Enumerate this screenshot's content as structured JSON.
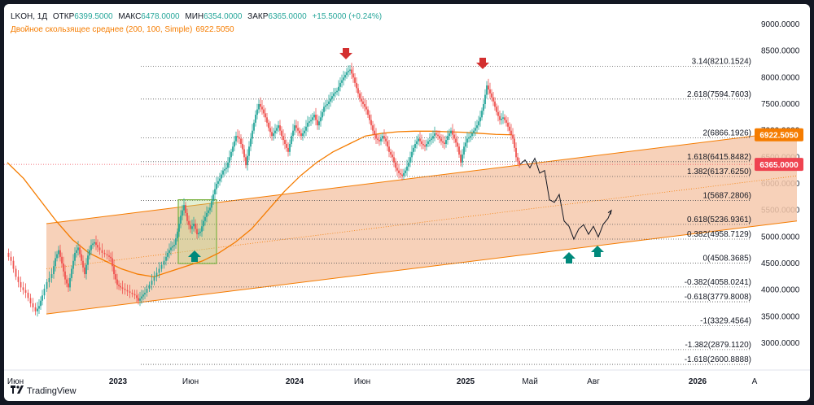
{
  "legend": {
    "symbol": "LKOH, 1Д",
    "open_label": "ОТКР",
    "open": "6399.5000",
    "high_label": "МАКС",
    "high": "6478.0000",
    "low_label": "МИН",
    "low": "6354.0000",
    "close_label": "ЗАКР",
    "close": "6365.0000",
    "change": "+15.5000 (+0.24%)",
    "sma_label": "Двойное скользящее среднее (200, 100, Simple)",
    "sma_value": "6922.5050"
  },
  "brand": {
    "logo_icon": "tradingview-logo-icon",
    "name": "TradingView"
  },
  "colors": {
    "up": "#26a69a",
    "down": "#ef5350",
    "sma": "#f57c00",
    "channel_fill": "#f6c9ad",
    "channel_line": "#f57c00",
    "marker_down": "#d32f2f",
    "marker_up": "#00897b",
    "box": "#7cb342",
    "price_tag": "#ef4350",
    "sma_tag": "#f57c00"
  },
  "chart_data": {
    "type": "candlestick",
    "ylim": [
      2600,
      9300
    ],
    "y_ticks": [
      "9000.0000",
      "8500.0000",
      "8000.0000",
      "7500.0000",
      "7000.0000",
      "6500.0000",
      "6000.0000",
      "5500.0000",
      "5000.0000",
      "4500.0000",
      "4000.0000",
      "3500.0000",
      "3000.0000"
    ],
    "x_ticks": [
      "Июн",
      "2023",
      "Июн",
      "2024",
      "Июн",
      "2025",
      "Май",
      "Авг",
      "2026",
      "А"
    ],
    "last_price": "6365.0000",
    "sma_tag": "6922.5050",
    "fib_levels": [
      {
        "label": "3.14(8210.1524)",
        "value": 8210.1524
      },
      {
        "label": "2.618(7594.7603)",
        "value": 7594.7603
      },
      {
        "label": "2(6866.1926)",
        "value": 6866.1926
      },
      {
        "label": "1.618(6415.8482)",
        "value": 6415.8482
      },
      {
        "label": "1.382(6137.6250)",
        "value": 6137.625
      },
      {
        "label": "1(5687.2806)",
        "value": 5687.2806
      },
      {
        "label": "0.618(5236.9361)",
        "value": 5236.9361
      },
      {
        "label": "0.382(4958.7129)",
        "value": 4958.7129
      },
      {
        "label": "0(4508.3685)",
        "value": 4508.3685
      },
      {
        "label": "-0.382(4058.0241)",
        "value": 4058.0241
      },
      {
        "label": "-0.618(3779.8008)",
        "value": 3779.8008
      },
      {
        "label": "-1(3329.4564)",
        "value": 3329.4564
      },
      {
        "label": "-1.382(2879.1120)",
        "value": 2879.112
      },
      {
        "label": "-1.618(2600.8888)",
        "value": 2600.8888
      }
    ],
    "price_path": [
      [
        0,
        4700
      ],
      [
        6,
        4550
      ],
      [
        12,
        4250
      ],
      [
        18,
        4050
      ],
      [
        24,
        3950
      ],
      [
        30,
        3750
      ],
      [
        36,
        3600
      ],
      [
        40,
        3700
      ],
      [
        44,
        3900
      ],
      [
        50,
        4150
      ],
      [
        56,
        4300
      ],
      [
        60,
        4600
      ],
      [
        64,
        4750
      ],
      [
        68,
        4500
      ],
      [
        72,
        4200
      ],
      [
        76,
        4050
      ],
      [
        80,
        4400
      ],
      [
        84,
        4700
      ],
      [
        88,
        4800
      ],
      [
        92,
        4550
      ],
      [
        96,
        4300
      ],
      [
        100,
        4650
      ],
      [
        104,
        4850
      ],
      [
        108,
        4900
      ],
      [
        112,
        4800
      ],
      [
        118,
        4700
      ],
      [
        124,
        4650
      ],
      [
        128,
        4600
      ],
      [
        132,
        4300
      ],
      [
        136,
        4100
      ],
      [
        140,
        4050
      ],
      [
        146,
        4000
      ],
      [
        152,
        3950
      ],
      [
        158,
        3900
      ],
      [
        162,
        3800
      ],
      [
        166,
        3880
      ],
      [
        170,
        3950
      ],
      [
        176,
        4100
      ],
      [
        182,
        4250
      ],
      [
        188,
        4400
      ],
      [
        194,
        4550
      ],
      [
        198,
        4700
      ],
      [
        202,
        4800
      ],
      [
        206,
        4850
      ],
      [
        210,
        5100
      ],
      [
        214,
        5400
      ],
      [
        218,
        5600
      ],
      [
        222,
        5300
      ],
      [
        226,
        5150
      ],
      [
        230,
        5250
      ],
      [
        234,
        5050
      ],
      [
        238,
        5100
      ],
      [
        242,
        5300
      ],
      [
        246,
        5450
      ],
      [
        250,
        5550
      ],
      [
        254,
        5800
      ],
      [
        258,
        6000
      ],
      [
        262,
        6100
      ],
      [
        266,
        6250
      ],
      [
        270,
        6300
      ],
      [
        274,
        6500
      ],
      [
        278,
        6700
      ],
      [
        282,
        6900
      ],
      [
        286,
        6850
      ],
      [
        290,
        6650
      ],
      [
        294,
        6350
      ],
      [
        298,
        6700
      ],
      [
        302,
        7000
      ],
      [
        306,
        7300
      ],
      [
        310,
        7500
      ],
      [
        314,
        7400
      ],
      [
        318,
        7250
      ],
      [
        322,
        7050
      ],
      [
        326,
        6900
      ],
      [
        330,
        7000
      ],
      [
        334,
        7100
      ],
      [
        338,
        6900
      ],
      [
        342,
        6750
      ],
      [
        346,
        6600
      ],
      [
        350,
        6900
      ],
      [
        354,
        7100
      ],
      [
        358,
        7000
      ],
      [
        362,
        6900
      ],
      [
        366,
        7000
      ],
      [
        370,
        7150
      ],
      [
        374,
        7200
      ],
      [
        378,
        7300
      ],
      [
        382,
        7100
      ],
      [
        386,
        7250
      ],
      [
        390,
        7450
      ],
      [
        394,
        7500
      ],
      [
        398,
        7600
      ],
      [
        402,
        7700
      ],
      [
        406,
        7750
      ],
      [
        410,
        7900
      ],
      [
        414,
        8000
      ],
      [
        418,
        8100
      ],
      [
        422,
        8150
      ],
      [
        426,
        8000
      ],
      [
        430,
        7800
      ],
      [
        434,
        7600
      ],
      [
        438,
        7500
      ],
      [
        442,
        7400
      ],
      [
        446,
        7200
      ],
      [
        450,
        7000
      ],
      [
        454,
        6850
      ],
      [
        458,
        6800
      ],
      [
        462,
        6900
      ],
      [
        466,
        6800
      ],
      [
        470,
        6600
      ],
      [
        474,
        6500
      ],
      [
        478,
        6300
      ],
      [
        482,
        6200
      ],
      [
        486,
        6150
      ],
      [
        490,
        6250
      ],
      [
        494,
        6400
      ],
      [
        498,
        6600
      ],
      [
        502,
        6750
      ],
      [
        506,
        6850
      ],
      [
        510,
        6750
      ],
      [
        514,
        6700
      ],
      [
        518,
        6800
      ],
      [
        522,
        6850
      ],
      [
        526,
        6950
      ],
      [
        530,
        6900
      ],
      [
        534,
        6800
      ],
      [
        538,
        6750
      ],
      [
        542,
        6900
      ],
      [
        546,
        7000
      ],
      [
        550,
        6850
      ],
      [
        554,
        6700
      ],
      [
        558,
        6400
      ],
      [
        562,
        6700
      ],
      [
        566,
        6850
      ],
      [
        570,
        6900
      ],
      [
        574,
        7000
      ],
      [
        578,
        7100
      ],
      [
        582,
        7250
      ],
      [
        586,
        7500
      ],
      [
        590,
        7850
      ],
      [
        594,
        7700
      ],
      [
        598,
        7550
      ],
      [
        602,
        7350
      ],
      [
        606,
        7200
      ],
      [
        610,
        7250
      ],
      [
        614,
        7150
      ],
      [
        618,
        7000
      ],
      [
        622,
        6850
      ],
      [
        626,
        6500
      ],
      [
        630,
        6365
      ]
    ],
    "sma_path": [
      [
        0,
        6400
      ],
      [
        20,
        6100
      ],
      [
        40,
        5700
      ],
      [
        60,
        5300
      ],
      [
        80,
        4950
      ],
      [
        100,
        4700
      ],
      [
        120,
        4550
      ],
      [
        140,
        4400
      ],
      [
        160,
        4300
      ],
      [
        180,
        4250
      ],
      [
        200,
        4350
      ],
      [
        220,
        4450
      ],
      [
        240,
        4550
      ],
      [
        260,
        4700
      ],
      [
        280,
        4900
      ],
      [
        300,
        5150
      ],
      [
        320,
        5500
      ],
      [
        340,
        5850
      ],
      [
        360,
        6150
      ],
      [
        380,
        6400
      ],
      [
        400,
        6600
      ],
      [
        420,
        6750
      ],
      [
        440,
        6900
      ],
      [
        460,
        6950
      ],
      [
        480,
        6980
      ],
      [
        500,
        6990
      ],
      [
        520,
        6990
      ],
      [
        540,
        6980
      ],
      [
        560,
        6970
      ],
      [
        580,
        6950
      ],
      [
        600,
        6930
      ],
      [
        620,
        6922
      ]
    ],
    "projection_path": [
      [
        630,
        6365
      ],
      [
        636,
        6450
      ],
      [
        642,
        6300
      ],
      [
        648,
        6480
      ],
      [
        654,
        6200
      ],
      [
        660,
        6250
      ],
      [
        666,
        5700
      ],
      [
        672,
        5650
      ],
      [
        678,
        5800
      ],
      [
        684,
        5300
      ],
      [
        690,
        5200
      ],
      [
        696,
        4958
      ],
      [
        702,
        5150
      ],
      [
        708,
        5230
      ],
      [
        714,
        5050
      ],
      [
        720,
        5200
      ],
      [
        726,
        5000
      ],
      [
        732,
        5236
      ],
      [
        738,
        5350
      ],
      [
        742,
        5500
      ]
    ],
    "channel": {
      "lower": [
        [
          48,
          3550
        ],
        [
          970,
          5300
        ]
      ],
      "upper": [
        [
          48,
          5250
        ],
        [
          970,
          7000
        ]
      ]
    },
    "box": {
      "x0": 210,
      "x1": 257,
      "y0": 4500,
      "y1": 5700
    }
  }
}
